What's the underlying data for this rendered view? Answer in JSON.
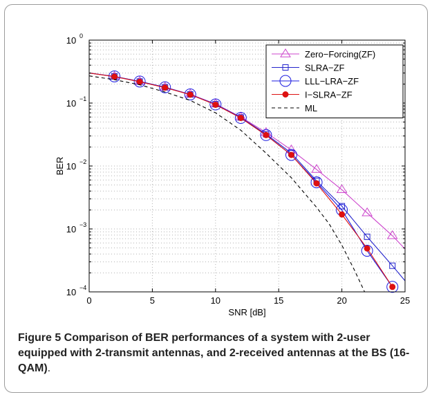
{
  "colors": {
    "zf": "#cc44cc",
    "slra": "#2222cc",
    "lll": "#1a1ae0",
    "islra": "#dd1111",
    "ml": "#000000",
    "grid": "#b0b0b0"
  },
  "chart_data": {
    "type": "line",
    "xlabel": "SNR [dB]",
    "ylabel": "BER",
    "xlim": [
      0,
      25
    ],
    "ylim": [
      0.0001,
      1
    ],
    "yscale": "log",
    "grid": true,
    "legend_position": "top-right",
    "x_ticks": [
      0,
      5,
      10,
      15,
      20,
      25
    ],
    "y_ticks": [
      {
        "value": 0.0001,
        "base": "10",
        "exp": "−4"
      },
      {
        "value": 0.001,
        "base": "10",
        "exp": "−3"
      },
      {
        "value": 0.01,
        "base": "10",
        "exp": "−2"
      },
      {
        "value": 0.1,
        "base": "10",
        "exp": "−1"
      },
      {
        "value": 1,
        "base": "10",
        "exp": "0"
      }
    ],
    "series": [
      {
        "name": "Zero−Forcing(ZF)",
        "key": "zf",
        "marker": "triangle",
        "dash": "none",
        "line_x": [
          0,
          2,
          4,
          6,
          8,
          10,
          12,
          14,
          16,
          18,
          20,
          22,
          24,
          25
        ],
        "line_y": [
          0.3,
          0.265,
          0.22,
          0.178,
          0.138,
          0.097,
          0.06,
          0.034,
          0.018,
          0.0088,
          0.0042,
          0.0018,
          0.00078,
          0.00048
        ],
        "marker_x": [
          2,
          4,
          6,
          8,
          10,
          12,
          14,
          16,
          18,
          20,
          22,
          24
        ],
        "marker_y": [
          0.265,
          0.22,
          0.178,
          0.138,
          0.097,
          0.06,
          0.034,
          0.018,
          0.0088,
          0.0042,
          0.0018,
          0.00078
        ]
      },
      {
        "name": "SLRA−ZF",
        "key": "slra",
        "marker": "square",
        "dash": "none",
        "line_x": [
          0,
          2,
          4,
          6,
          8,
          10,
          12,
          14,
          16,
          18,
          20,
          22,
          24,
          25
        ],
        "line_y": [
          0.3,
          0.265,
          0.22,
          0.178,
          0.137,
          0.096,
          0.059,
          0.032,
          0.016,
          0.0058,
          0.0023,
          0.00075,
          0.00026,
          0.00015
        ],
        "marker_x": [
          2,
          4,
          6,
          8,
          10,
          12,
          14,
          16,
          18,
          20,
          22,
          24
        ],
        "marker_y": [
          0.265,
          0.22,
          0.178,
          0.137,
          0.096,
          0.059,
          0.032,
          0.016,
          0.0058,
          0.0023,
          0.00075,
          0.00026
        ]
      },
      {
        "name": "LLL−LRA−ZF",
        "key": "lll",
        "marker": "circle",
        "dash": "none",
        "line_x": [
          0,
          2,
          4,
          6,
          8,
          10,
          12,
          14,
          16,
          18,
          20,
          22,
          24
        ],
        "line_y": [
          0.3,
          0.265,
          0.22,
          0.178,
          0.137,
          0.095,
          0.058,
          0.031,
          0.015,
          0.0055,
          0.002,
          0.00045,
          0.00012
        ],
        "marker_x": [
          2,
          4,
          6,
          8,
          10,
          12,
          14,
          16,
          18,
          20,
          22,
          24
        ],
        "marker_y": [
          0.265,
          0.22,
          0.178,
          0.137,
          0.095,
          0.058,
          0.031,
          0.015,
          0.0055,
          0.002,
          0.00045,
          0.00012
        ]
      },
      {
        "name": "I−SLRA−ZF",
        "key": "islra",
        "marker": "dot",
        "dash": "none",
        "line_x": [
          0,
          2,
          4,
          6,
          8,
          10,
          12,
          14,
          16,
          18,
          20,
          22,
          24
        ],
        "line_y": [
          0.3,
          0.263,
          0.218,
          0.176,
          0.136,
          0.094,
          0.058,
          0.031,
          0.015,
          0.0053,
          0.0017,
          0.00049,
          0.00012
        ],
        "marker_x": [
          2,
          4,
          6,
          8,
          10,
          12,
          14,
          16,
          18,
          20,
          22,
          24
        ],
        "marker_y": [
          0.263,
          0.218,
          0.176,
          0.136,
          0.094,
          0.058,
          0.031,
          0.015,
          0.0053,
          0.0017,
          0.00049,
          0.00012
        ]
      },
      {
        "name": "ML",
        "key": "ml",
        "marker": "none",
        "dash": "dashed",
        "line_x": [
          0,
          2,
          4,
          6,
          8,
          10,
          12,
          14,
          16,
          18,
          19,
          20,
          21,
          21.8
        ],
        "line_y": [
          0.27,
          0.235,
          0.195,
          0.15,
          0.11,
          0.07,
          0.037,
          0.016,
          0.0065,
          0.0022,
          0.0012,
          0.00055,
          0.00022,
          0.0001
        ],
        "marker_x": [],
        "marker_y": []
      }
    ]
  },
  "caption": {
    "label": "Figure 5",
    "text": " Comparison of BER performances of a system with 2-user equipped with 2-transmit antennas, and 2-received antennas at the BS (16-QAM)",
    "end": "."
  }
}
